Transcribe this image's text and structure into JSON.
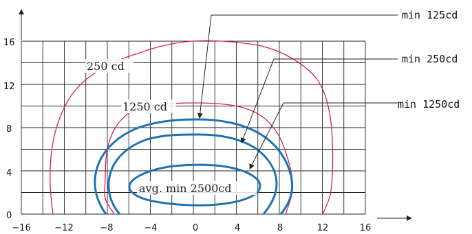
{
  "chart_data": {
    "type": "diagram",
    "x_ticks": [
      "−16",
      "−12",
      "−8",
      "−4",
      "0",
      "4",
      "8",
      "12",
      "16"
    ],
    "y_ticks": [
      "0",
      "4",
      "8",
      "12",
      "16"
    ],
    "xlim": [
      -16,
      16
    ],
    "ylim": [
      0,
      16
    ],
    "grid": true,
    "isocandela_labels": {
      "outer": "250 cd",
      "middle": "1250 cd",
      "core": "avg. min 2500cd"
    },
    "annotations": [
      "min 125cd",
      "min 250cd",
      "min 1250cd"
    ],
    "colors": {
      "red_contours": "#d1225a",
      "blue_contours": "#1f72b3"
    }
  }
}
